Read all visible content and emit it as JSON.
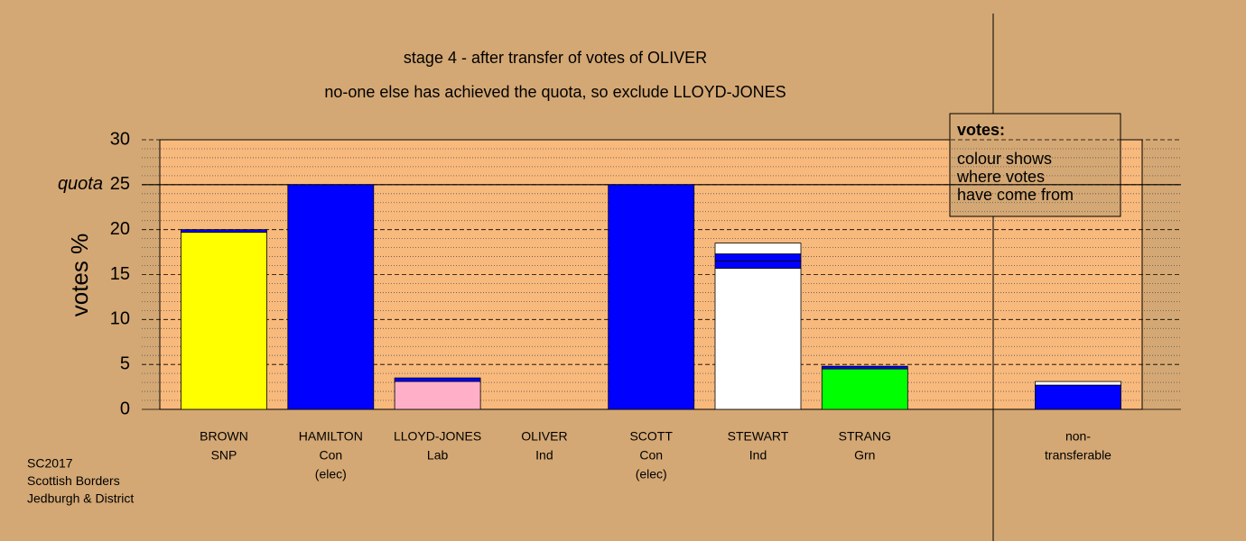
{
  "chart_data": {
    "type": "stacked-bar",
    "title": "stage 4 - after transfer of votes of OLIVER",
    "subtitle": "no-one else has achieved the quota, so exclude LLOYD-JONES",
    "ylabel": "votes %",
    "ylim": [
      0,
      30
    ],
    "yticks": [
      0,
      5,
      10,
      15,
      20,
      25,
      30
    ],
    "minor_yticks": [
      1,
      2,
      3,
      4,
      6,
      7,
      8,
      9,
      11,
      12,
      13,
      14,
      16,
      17,
      18,
      19,
      21,
      22,
      23,
      24,
      26,
      27,
      28,
      29
    ],
    "quota": {
      "label": "quota",
      "value": 25
    },
    "bars": [
      {
        "label": [
          "BROWN",
          "SNP"
        ],
        "segments": [
          {
            "value": 19.7,
            "color": "#ffff00"
          },
          {
            "value": 0.3,
            "color": "#0000ff"
          }
        ]
      },
      {
        "label": [
          "HAMILTON",
          "Con",
          "(elec)"
        ],
        "segments": [
          {
            "value": 25,
            "color": "#0000ff"
          }
        ]
      },
      {
        "label": [
          "LLOYD-JONES",
          "Lab"
        ],
        "segments": [
          {
            "value": 3.1,
            "color": "#ffb0c8"
          },
          {
            "value": 0.4,
            "color": "#0000ff"
          }
        ]
      },
      {
        "label": [
          "OLIVER",
          "Ind"
        ],
        "segments": []
      },
      {
        "label": [
          "SCOTT",
          "Con",
          "(elec)"
        ],
        "segments": [
          {
            "value": 25,
            "color": "#0000ff"
          }
        ]
      },
      {
        "label": [
          "STEWART",
          "Ind"
        ],
        "segments": [
          {
            "value": 15.7,
            "color": "#ffffff"
          },
          {
            "value": 0.8,
            "color": "#0000ff"
          },
          {
            "value": 0.8,
            "color": "#0000ff"
          },
          {
            "value": 1.2,
            "color": "#ffffff"
          }
        ]
      },
      {
        "label": [
          "STRANG",
          "Grn"
        ],
        "segments": [
          {
            "value": 4.5,
            "color": "#00ff00"
          },
          {
            "value": 0.3,
            "color": "#0000ff"
          }
        ]
      }
    ],
    "nontransferable": {
      "label": [
        "non-",
        "transferable"
      ],
      "segments": [
        {
          "value": 2.7,
          "color": "#0000ff"
        },
        {
          "value": 0.4,
          "color": "#ffffff"
        }
      ]
    },
    "legend": {
      "title": "votes:",
      "lines": [
        "colour shows",
        "where votes",
        "have come from"
      ]
    },
    "footer": [
      "SC2017",
      "Scottish Borders",
      "Jedburgh & District"
    ]
  }
}
